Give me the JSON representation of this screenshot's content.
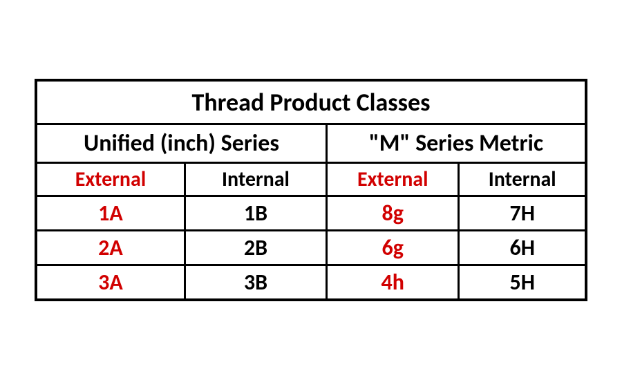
{
  "table": {
    "title": "Thread Product Classes",
    "series": {
      "unified": "Unified (inch) Series",
      "metric": "\"M\" Series Metric"
    },
    "subheaders": {
      "external": "External",
      "internal": "Internal"
    },
    "rows": [
      {
        "unified_ext": "1A",
        "unified_int": "1B",
        "metric_ext": "8g",
        "metric_int": "7H"
      },
      {
        "unified_ext": "2A",
        "unified_int": "2B",
        "metric_ext": "6g",
        "metric_int": "6H"
      },
      {
        "unified_ext": "3A",
        "unified_int": "3B",
        "metric_ext": "4h",
        "metric_int": "5H"
      }
    ],
    "column_widths": [
      "25%",
      "25%",
      "25%",
      "25%"
    ],
    "colors": {
      "external_text": "#d10000",
      "internal_text": "#000000",
      "border": "#000000",
      "background": "#ffffff"
    },
    "font": {
      "family": "Calibri, Arial, sans-serif",
      "title_size_pt": 36,
      "series_size_pt": 34,
      "subhead_size_pt": 30,
      "data_size_pt": 32,
      "weight": 700
    }
  }
}
